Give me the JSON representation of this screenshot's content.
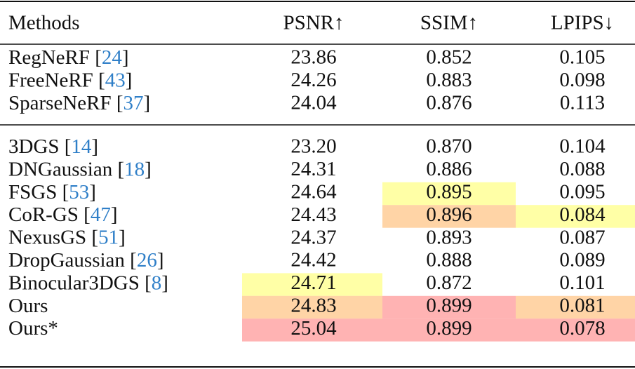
{
  "table": {
    "header": [
      "Methods",
      "PSNR↑",
      "SSIM↑",
      "LPIPS↓"
    ],
    "ref_color": "#2f7fc8",
    "groups": [
      {
        "rows": [
          {
            "method": [
              "RegNeRF [",
              "24",
              "]"
            ],
            "values": [
              "23.86",
              "0.852",
              "0.105"
            ],
            "cell_colors": [
              null,
              null,
              null
            ]
          },
          {
            "method": [
              "FreeNeRF [",
              "43",
              "]"
            ],
            "values": [
              "24.26",
              "0.883",
              "0.098"
            ],
            "cell_colors": [
              null,
              null,
              null
            ]
          },
          {
            "method": [
              "SparseNeRF [",
              "37",
              "]"
            ],
            "values": [
              "24.04",
              "0.876",
              "0.113"
            ],
            "cell_colors": [
              null,
              null,
              null
            ]
          }
        ]
      },
      {
        "rows": [
          {
            "method": [
              "3DGS [",
              "14",
              "]"
            ],
            "values": [
              "23.20",
              "0.870",
              "0.104"
            ],
            "cell_colors": [
              null,
              null,
              null
            ]
          },
          {
            "method": [
              "DNGaussian [",
              "18",
              "]"
            ],
            "values": [
              "24.31",
              "0.886",
              "0.088"
            ],
            "cell_colors": [
              null,
              null,
              null
            ]
          },
          {
            "method": [
              "FSGS [",
              "53",
              "]"
            ],
            "values": [
              "24.64",
              "0.895",
              "0.095"
            ],
            "cell_colors": [
              null,
              "#ffffa6",
              null
            ]
          },
          {
            "method": [
              "CoR-GS [",
              "47",
              "]"
            ],
            "values": [
              "24.43",
              "0.896",
              "0.084"
            ],
            "cell_colors": [
              null,
              "#ffd4a6",
              "#ffffa6"
            ]
          },
          {
            "method": [
              "NexusGS [",
              "51",
              "]"
            ],
            "values": [
              "24.37",
              "0.893",
              "0.087"
            ],
            "cell_colors": [
              null,
              null,
              null
            ]
          },
          {
            "method": [
              "DropGaussian [",
              "26",
              "]"
            ],
            "values": [
              "24.42",
              "0.888",
              "0.089"
            ],
            "cell_colors": [
              null,
              null,
              null
            ]
          },
          {
            "method": [
              "Binocular3DGS [",
              "8",
              "]"
            ],
            "values": [
              "24.71",
              "0.872",
              "0.101"
            ],
            "cell_colors": [
              "#ffffa6",
              null,
              null
            ]
          },
          {
            "method": [
              "Ours"
            ],
            "values": [
              "24.83",
              "0.899",
              "0.081"
            ],
            "cell_colors": [
              "#ffd4a6",
              "#ffb3b3",
              "#ffd4a6"
            ]
          },
          {
            "method": [
              "Ours*"
            ],
            "values": [
              "25.04",
              "0.899",
              "0.078"
            ],
            "cell_colors": [
              "#ffb3b3",
              "#ffb3b3",
              "#ffb3b3"
            ]
          }
        ]
      }
    ]
  }
}
